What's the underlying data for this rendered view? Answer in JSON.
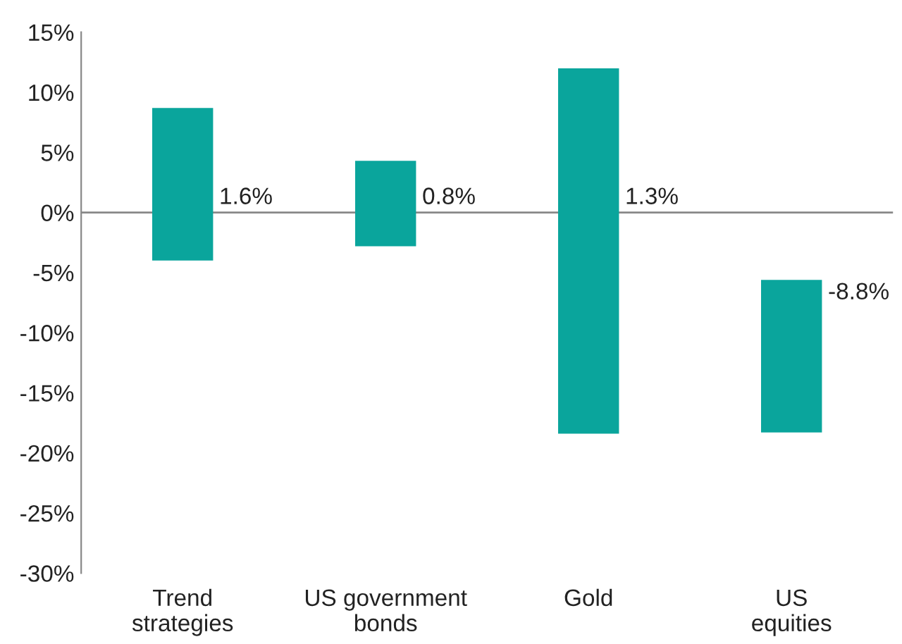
{
  "chart_data": {
    "type": "bar",
    "categories": [
      "Trend\nstrategies",
      "US government\nbonds",
      "Gold",
      "US\nequities"
    ],
    "values": [
      12.7,
      7.1,
      30.4,
      12.7
    ],
    "base": [
      -4.0,
      -2.8,
      -18.4,
      -18.3
    ],
    "color": "#0aa59c",
    "ylim": [
      -30,
      15
    ],
    "yticks": [
      {
        "value": -30,
        "label": "-30%"
      },
      {
        "value": -25,
        "label": "-25%"
      },
      {
        "value": -20,
        "label": "-20%"
      },
      {
        "value": -15,
        "label": "-15%"
      },
      {
        "value": -10,
        "label": "-10%"
      },
      {
        "value": -5,
        "label": "-5%"
      },
      {
        "value": 0,
        "label": "0%"
      },
      {
        "value": 5,
        "label": "5%"
      },
      {
        "value": 10,
        "label": "10%"
      },
      {
        "value": 15,
        "label": "15%"
      }
    ],
    "ref_lines": [
      {
        "axis": "y",
        "value": 0,
        "color": "#888888"
      }
    ],
    "annotations": [
      "1.6%",
      "0.8%",
      "1.3%",
      "-8.8%"
    ],
    "grid": false
  }
}
